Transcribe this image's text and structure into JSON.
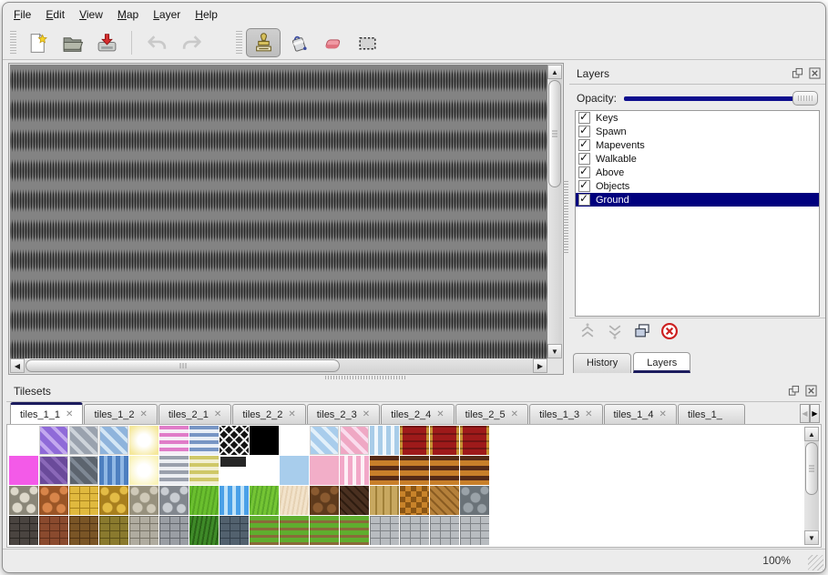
{
  "menu": {
    "items": [
      {
        "label": "File"
      },
      {
        "label": "Edit"
      },
      {
        "label": "View"
      },
      {
        "label": "Map"
      },
      {
        "label": "Layer"
      },
      {
        "label": "Help"
      }
    ]
  },
  "toolbar": {
    "file_buttons": [
      {
        "name": "new-file"
      },
      {
        "name": "open-file"
      },
      {
        "name": "save-file"
      }
    ],
    "history_buttons": [
      {
        "name": "undo",
        "disabled": true
      },
      {
        "name": "redo",
        "disabled": true
      }
    ],
    "tool_buttons": [
      {
        "name": "stamp-tool",
        "active": true
      },
      {
        "name": "fill-tool"
      },
      {
        "name": "eraser-tool"
      },
      {
        "name": "rect-select-tool"
      }
    ]
  },
  "layers_panel": {
    "title": "Layers",
    "opacity_label": "Opacity:",
    "opacity_percent": 100,
    "layers": [
      {
        "label": "Keys",
        "checked": true,
        "selected": false
      },
      {
        "label": "Spawn",
        "checked": true,
        "selected": false
      },
      {
        "label": "Mapevents",
        "checked": true,
        "selected": false
      },
      {
        "label": "Walkable",
        "checked": true,
        "selected": false
      },
      {
        "label": "Above",
        "checked": true,
        "selected": false
      },
      {
        "label": "Objects",
        "checked": true,
        "selected": false
      },
      {
        "label": "Ground",
        "checked": true,
        "selected": true
      }
    ],
    "action_icons": [
      {
        "name": "raise-layer-icon",
        "disabled": true
      },
      {
        "name": "lower-layer-icon",
        "disabled": true
      },
      {
        "name": "duplicate-layer-icon"
      },
      {
        "name": "delete-layer-icon"
      }
    ],
    "tabs": [
      {
        "label": "History",
        "active": false
      },
      {
        "label": "Layers",
        "active": true
      }
    ]
  },
  "tilesets_panel": {
    "title": "Tilesets",
    "tabs": [
      {
        "label": "tiles_1_1",
        "active": true
      },
      {
        "label": "tiles_1_2"
      },
      {
        "label": "tiles_2_1"
      },
      {
        "label": "tiles_2_2"
      },
      {
        "label": "tiles_2_3"
      },
      {
        "label": "tiles_2_4"
      },
      {
        "label": "tiles_2_5"
      },
      {
        "label": "tiles_1_3"
      },
      {
        "label": "tiles_1_4"
      },
      {
        "label": "tiles_1_",
        "truncated": true
      }
    ],
    "tile_rows": [
      [
        {
          "n": "empty",
          "p": "empty"
        },
        {
          "n": "glass-purple",
          "p": "diag",
          "c1": "#8f6ad8",
          "c2": "#c3a8ef"
        },
        {
          "n": "glass-silver",
          "p": "diag",
          "c1": "#9aa2ae",
          "c2": "#cdd3da"
        },
        {
          "n": "glass-waterblue",
          "p": "diag",
          "c1": "#8fb4dc",
          "c2": "#d3e6f5"
        },
        {
          "n": "glow-yellow",
          "p": "glow",
          "c1": "#f5e89a",
          "c2": "#ffffff"
        },
        {
          "n": "stripes-pink",
          "p": "hstripes",
          "c1": "#e07cc8",
          "c2": "#f6eef6"
        },
        {
          "n": "stripes-blue",
          "p": "hstripes",
          "c1": "#7795c4",
          "c2": "#e8eef6"
        },
        {
          "n": "lattice-black",
          "p": "lattice",
          "c1": "#141414",
          "c2": "#f2f2f2"
        },
        {
          "n": "solid-black",
          "p": "solid",
          "c1": "#000000"
        },
        {
          "n": "empty",
          "p": "empty"
        },
        {
          "n": "glass-lightblue",
          "p": "diag",
          "c1": "#a9cdec",
          "c2": "#e2f0fa"
        },
        {
          "n": "glass-pink",
          "p": "diag",
          "c1": "#efa8c4",
          "c2": "#fadced"
        },
        {
          "n": "curtain-blue-ruffle",
          "p": "ruffle",
          "c1": "#a8cce8",
          "c2": "#f0f7fc"
        },
        {
          "n": "curtain-red-gold",
          "p": "curtain",
          "c1": "#9e1a1a",
          "c2": "#c79032"
        },
        {
          "n": "curtain-red-gold",
          "p": "curtain",
          "c1": "#9e1a1a",
          "c2": "#c79032"
        },
        {
          "n": "curtain-red-gold",
          "p": "curtain",
          "c1": "#9e1a1a",
          "c2": "#c79032"
        }
      ],
      [
        {
          "n": "solid-magenta",
          "p": "solid",
          "c1": "#f35ae8"
        },
        {
          "n": "glass-darkpurple",
          "p": "diag",
          "c1": "#6a4a9a",
          "c2": "#8a68b8"
        },
        {
          "n": "glass-darkgray",
          "p": "diag",
          "c1": "#5c646e",
          "c2": "#7e8894"
        },
        {
          "n": "water-dark",
          "p": "ruffle",
          "c1": "#4d7fc0",
          "c2": "#8fb7e4"
        },
        {
          "n": "glow-paleyellow",
          "p": "glow",
          "c1": "#faf3b8",
          "c2": "#ffffff"
        },
        {
          "n": "stripes-gray",
          "p": "hstripes",
          "c1": "#9aa0ac",
          "c2": "#eceef2"
        },
        {
          "n": "stripes-olive",
          "p": "hstripes",
          "c1": "#cfc868",
          "c2": "#f2efd2"
        },
        {
          "n": "panel-dark",
          "p": "panel",
          "c1": "#262626",
          "c2": "#4a4a4a"
        },
        {
          "n": "empty",
          "p": "empty"
        },
        {
          "n": "solid-lightblue",
          "p": "solid",
          "c1": "#a8cdec"
        },
        {
          "n": "solid-pink",
          "p": "solid",
          "c1": "#f2aec8"
        },
        {
          "n": "curtain-pink-ruffle",
          "p": "ruffle",
          "c1": "#f2a8c8",
          "c2": "#fdf0f6"
        },
        {
          "n": "stripes-brown",
          "p": "bands",
          "c1": "#c87f2a",
          "c2": "#552a16"
        },
        {
          "n": "stripes-brown",
          "p": "bands",
          "c1": "#c87f2a",
          "c2": "#552a16"
        },
        {
          "n": "stripes-brown",
          "p": "bands",
          "c1": "#c87f2a",
          "c2": "#552a16"
        },
        {
          "n": "stripes-brown",
          "p": "bands",
          "c1": "#c87f2a",
          "c2": "#552a16"
        }
      ],
      [
        {
          "n": "flagstone-gray",
          "p": "cobble",
          "c1": "#ddd8ca",
          "c2": "#8a8678"
        },
        {
          "n": "cobble-orange",
          "p": "cobble",
          "c1": "#d8854a",
          "c2": "#9a5526"
        },
        {
          "n": "tiles-gold",
          "p": "bricks",
          "c1": "#e0b93e",
          "c2": "#a8821c"
        },
        {
          "n": "stones-gold",
          "p": "cobble",
          "c1": "#e3bc46",
          "c2": "#a87f1e"
        },
        {
          "n": "pebbles-gray",
          "p": "cobble",
          "c1": "#cfc9b8",
          "c2": "#97917e"
        },
        {
          "n": "cobblestone-gray",
          "p": "cobble",
          "c1": "#c9cdd2",
          "c2": "#82878e"
        },
        {
          "n": "grass-green",
          "p": "grass",
          "c1": "#6abf2e",
          "c2": "#57a524"
        },
        {
          "n": "water-blue",
          "p": "ruffle",
          "c1": "#4aa0e8",
          "c2": "#bfe2f8"
        },
        {
          "n": "grass-green",
          "p": "grass",
          "c1": "#74c534",
          "c2": "#5ba82a"
        },
        {
          "n": "sand-pale",
          "p": "grass",
          "c1": "#f2e3cb",
          "c2": "#e6d2b4"
        },
        {
          "n": "soil-brown",
          "p": "cobble",
          "c1": "#8a5a30",
          "c2": "#5e3a1c"
        },
        {
          "n": "shingles-dark",
          "p": "herringbone",
          "c1": "#4a3020",
          "c2": "#2e1c10"
        },
        {
          "n": "planks-wood",
          "p": "planksv",
          "c1": "#c8a860",
          "c2": "#a08038"
        },
        {
          "n": "weave-basket",
          "p": "weave",
          "c1": "#c8832a",
          "c2": "#8a5514"
        },
        {
          "n": "herringbone-wood",
          "p": "herringbone",
          "c1": "#b5803a",
          "c2": "#8a5c22"
        },
        {
          "n": "stones-gray-round",
          "p": "cobble",
          "c1": "#9aa2a8",
          "c2": "#6a7278"
        }
      ],
      [
        {
          "n": "brick-darkgray",
          "p": "bricks",
          "c1": "#4a4440",
          "c2": "#292522"
        },
        {
          "n": "brick-redbrown",
          "p": "bricks",
          "c1": "#8a4a2e",
          "c2": "#5e2e1a"
        },
        {
          "n": "brick-brown",
          "p": "bricks",
          "c1": "#7a5526",
          "c2": "#503414"
        },
        {
          "n": "blocks-olive",
          "p": "bricks",
          "c1": "#8a7a2e",
          "c2": "#5c5018"
        },
        {
          "n": "stone-gray",
          "p": "bricks",
          "c1": "#b0aca0",
          "c2": "#787468"
        },
        {
          "n": "brick-gray",
          "p": "bricks",
          "c1": "#9a9ea4",
          "c2": "#63676d"
        },
        {
          "n": "hedge-green",
          "p": "grass",
          "c1": "#3e8a28",
          "c2": "#2a6418"
        },
        {
          "n": "brick-bluegray",
          "p": "bricks",
          "c1": "#52616e",
          "c2": "#33404c"
        },
        {
          "n": "farm-rows",
          "p": "rows",
          "c1": "#5fae2e",
          "c2": "#8a6a3a"
        },
        {
          "n": "farm-rows",
          "p": "rows",
          "c1": "#5fae2e",
          "c2": "#8a6a3a"
        },
        {
          "n": "farm-rows",
          "p": "rows",
          "c1": "#5fae2e",
          "c2": "#8a6a3a"
        },
        {
          "n": "farm-rows",
          "p": "rows",
          "c1": "#5fae2e",
          "c2": "#8a6a3a"
        },
        {
          "n": "planks-graystone",
          "p": "bricks",
          "c1": "#b8bcc0",
          "c2": "#7e8286"
        },
        {
          "n": "planks-graystone",
          "p": "bricks",
          "c1": "#b8bcc0",
          "c2": "#7e8286"
        },
        {
          "n": "planks-graystone",
          "p": "bricks",
          "c1": "#b8bcc0",
          "c2": "#7e8286"
        },
        {
          "n": "planks-graystone",
          "p": "bricks",
          "c1": "#b8bcc0",
          "c2": "#7e8286"
        }
      ]
    ]
  },
  "status_bar": {
    "zoom": "100%"
  },
  "colors": {
    "accent_navy": "#0f0f8e",
    "selection_bg": "#00007e",
    "tab_underline": "#1c1c5e",
    "canvas_gray": "#838383",
    "window_bg": "#ececec"
  }
}
